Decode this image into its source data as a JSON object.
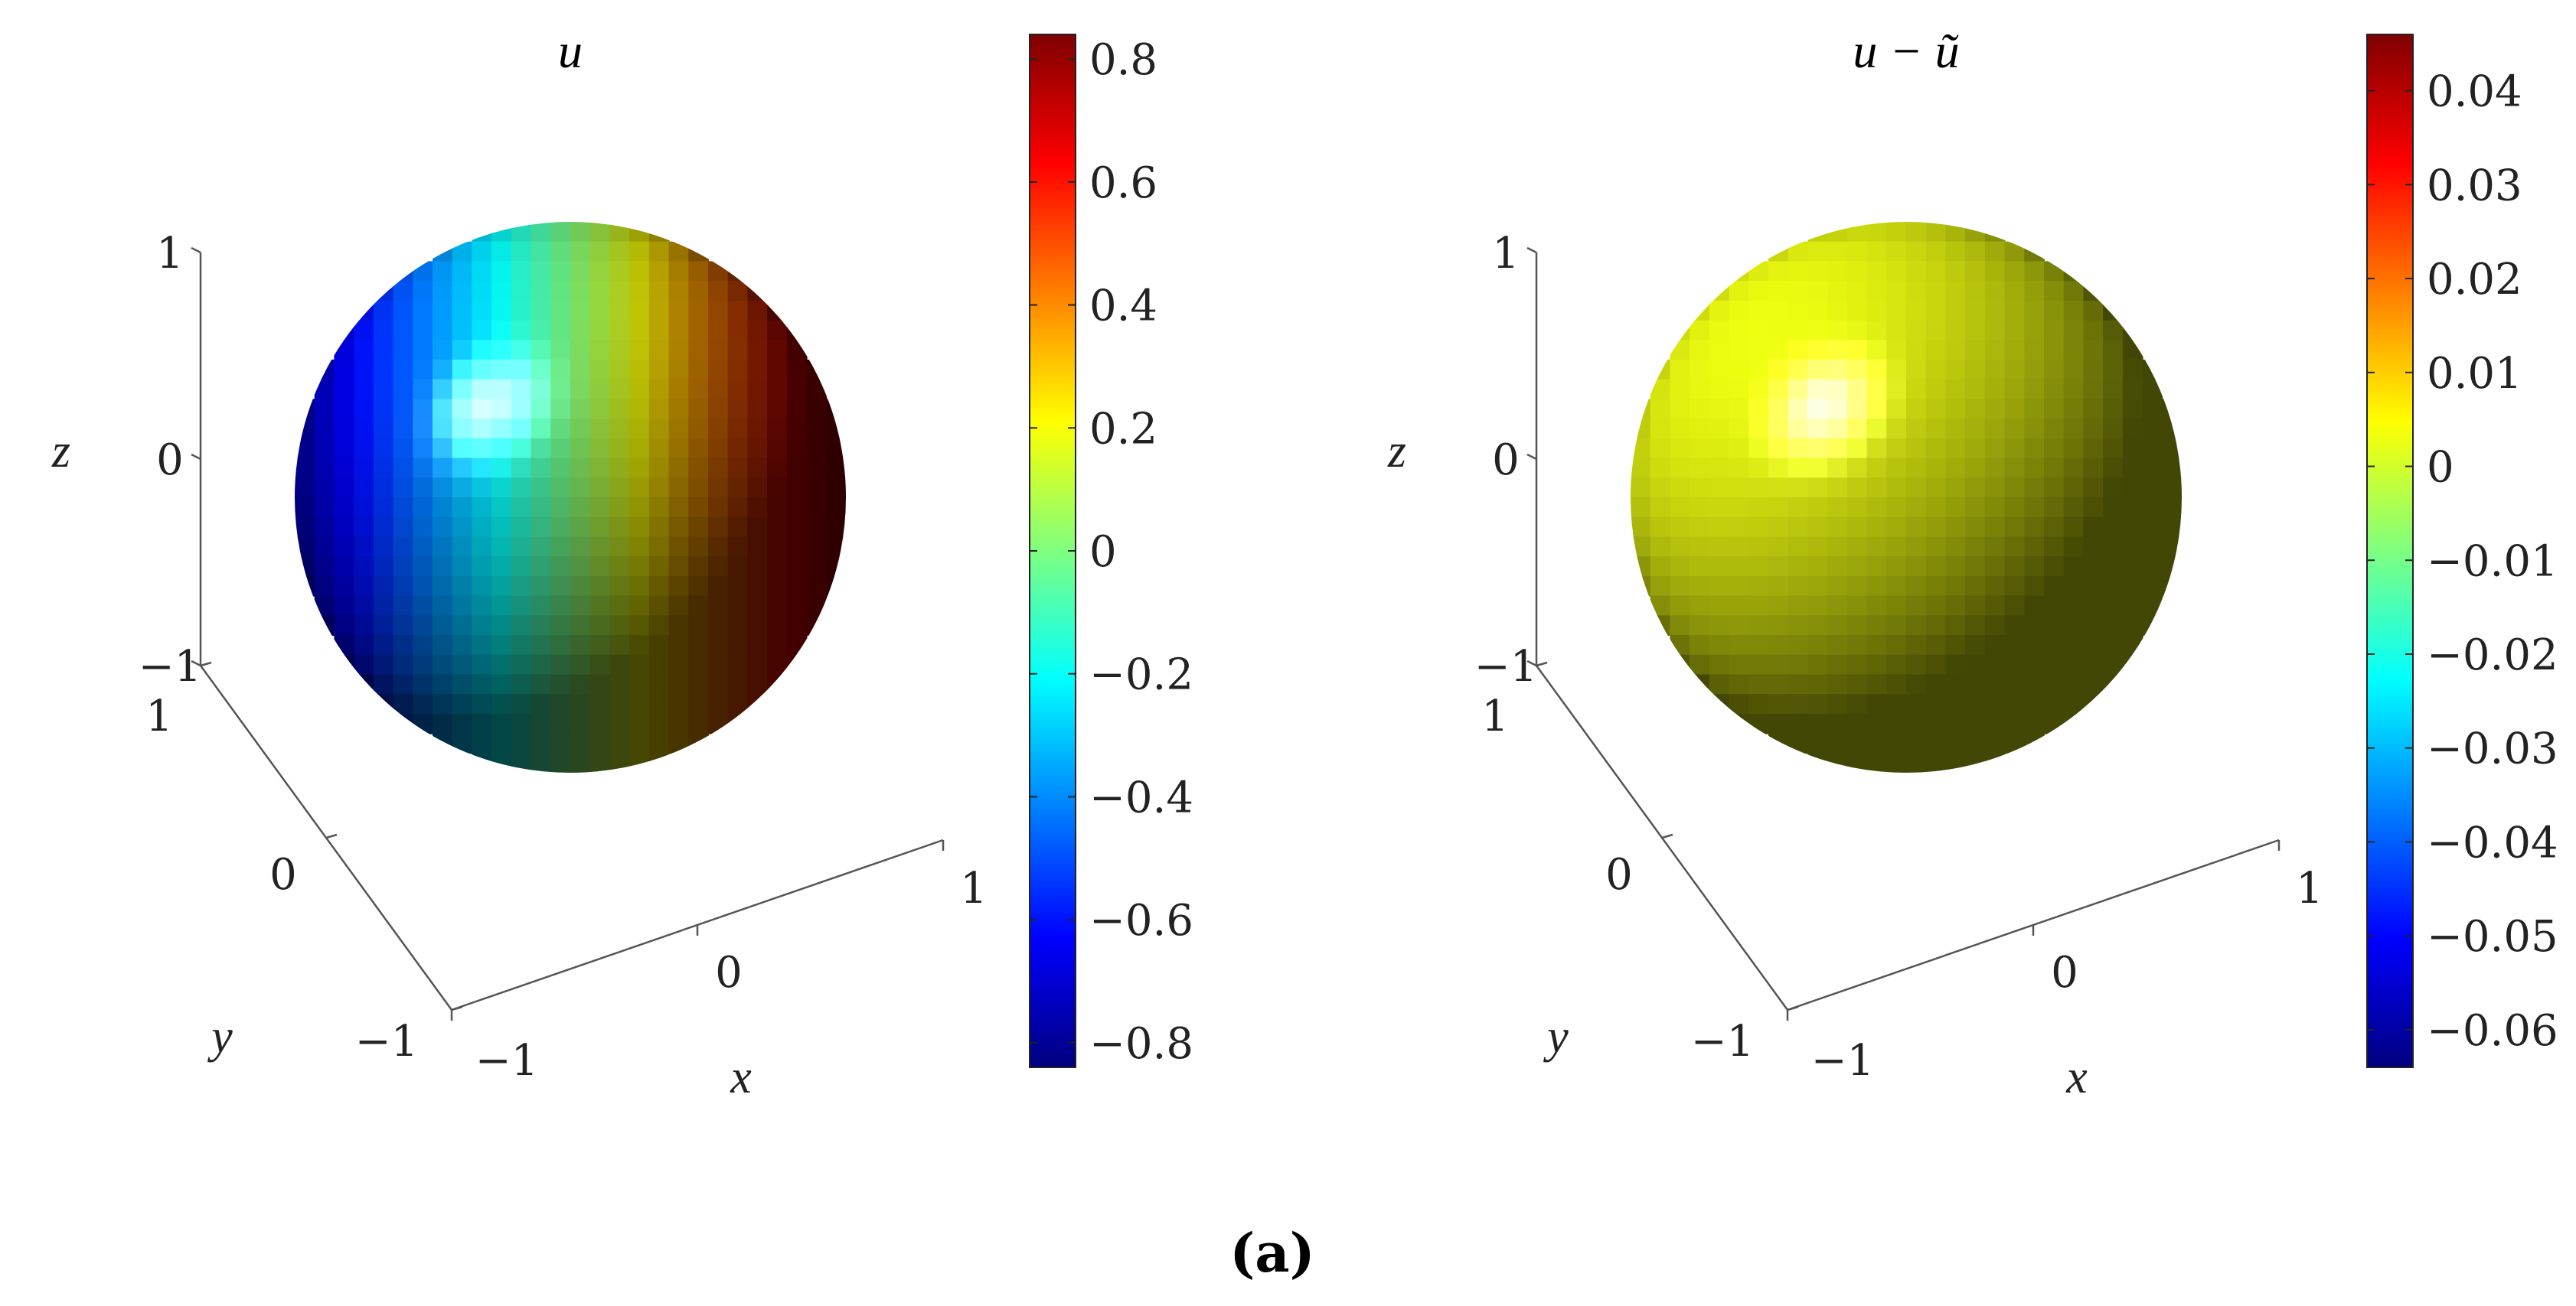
{
  "figure_label": "(a)",
  "colors": {
    "axis_line": "#555555",
    "colorbar_outline": "#222222",
    "jet": [
      "#00007f",
      "#0000ff",
      "#007fff",
      "#00ffff",
      "#7fff7f",
      "#ffff00",
      "#ff7f00",
      "#ff0000",
      "#7f0000"
    ]
  },
  "chart_data": [
    {
      "type": "heatmap",
      "subtype": "surface plot on unit sphere",
      "title": "u",
      "xlabel": "x",
      "ylabel": "y",
      "zlabel": "z",
      "xlim": [
        -1,
        1
      ],
      "ylim": [
        -1,
        1
      ],
      "zlim": [
        -1,
        1
      ],
      "x_ticks": [
        "−1",
        "0",
        "1"
      ],
      "y_ticks": [
        "−1",
        "0",
        "1"
      ],
      "z_ticks": [
        "−1",
        "0",
        "1"
      ],
      "grid": false,
      "colormap": "jet",
      "colorbar": {
        "placement": "right",
        "clim": [
          -0.84,
          0.84
        ],
        "tick_values": [
          0.8,
          0.6,
          0.4,
          0.2,
          0,
          -0.2,
          -0.4,
          -0.6,
          -0.8
        ],
        "tick_labels": [
          "0.8",
          "0.6",
          "0.4",
          "0.2",
          "0",
          "−0.2",
          "−0.4",
          "−0.6",
          "−0.8"
        ]
      },
      "surface": {
        "description": "field varies from about -0.8 on the left (blue) to about +0.8 on the right (dark red)",
        "value_left": -0.8,
        "value_right": 0.8
      }
    },
    {
      "type": "heatmap",
      "subtype": "surface plot on unit sphere",
      "title": "u − ũ",
      "xlabel": "x",
      "ylabel": "y",
      "zlabel": "z",
      "xlim": [
        -1,
        1
      ],
      "ylim": [
        -1,
        1
      ],
      "zlim": [
        -1,
        1
      ],
      "x_ticks": [
        "−1",
        "0",
        "1"
      ],
      "y_ticks": [
        "−1",
        "0",
        "1"
      ],
      "z_ticks": [
        "−1",
        "0",
        "1"
      ],
      "grid": false,
      "colormap": "jet",
      "colorbar": {
        "placement": "right",
        "clim": [
          -0.064,
          0.046
        ],
        "tick_values": [
          0.04,
          0.03,
          0.02,
          0.01,
          0,
          -0.01,
          -0.02,
          -0.03,
          -0.04,
          -0.05,
          -0.06
        ],
        "tick_labels": [
          "0.04",
          "0.03",
          "0.02",
          "0.01",
          "0",
          "−0.01",
          "−0.02",
          "−0.03",
          "−0.04",
          "−0.05",
          "−0.06"
        ]
      },
      "surface": {
        "description": "error is nearly uniform, close to 0 (yellow-green)",
        "value_left": 0.003,
        "value_right": 0.003
      }
    }
  ]
}
